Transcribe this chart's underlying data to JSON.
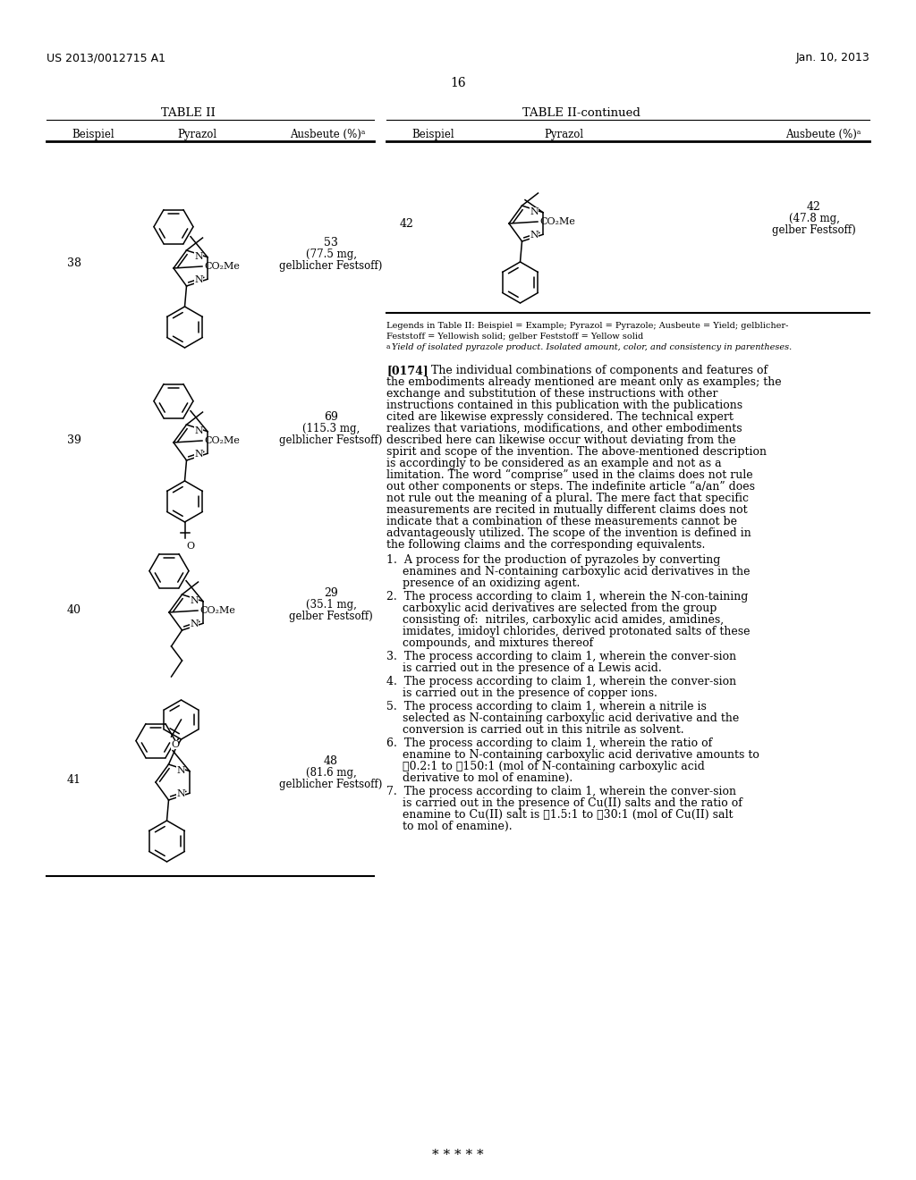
{
  "page_number": "16",
  "patent_number": "US 2013/0012715 A1",
  "patent_date": "Jan. 10, 2013",
  "background_color": "#ffffff",
  "table_left_title": "TABLE II",
  "table_right_title": "TABLE II-continued",
  "legend_line1": "Legends in Table II: Beispiel = Example; Pyrazol = Pyrazole; Ausbeute = Yield; gelblicher-",
  "legend_line2": "Feststoff = Yellowish solid; gelber Feststoff = Yellow solid",
  "legend_line3a": "a",
  "legend_line3": "Yield of isolated pyrazole product. Isolated amount, color, and consistency in parentheses.",
  "para0174_bold": "[0174]",
  "para0174_text": "   The individual combinations of components and features of the embodiments already mentioned are meant only as examples; the exchange and substitution of these instructions with other instructions contained in this publication with the publications cited are likewise expressly considered. The technical expert realizes that variations, modifications, and other embodiments described here can likewise occur without deviating from the spirit and scope of the invention. The above-mentioned description is accordingly to be considered as an example and not as a limitation. The word “comprise” used in the claims does not rule out other components or steps. The indefinite article “a/an” does not rule out the meaning of a plural. The mere fact that specific measurements are recited in mutually different claims does not indicate that a combination of these measurements cannot be advantageously utilized. The scope of the invention is defined in the following claims and the corresponding equivalents.",
  "claim1": "   1.  A process for the production of pyrazoles by converting enamines and N-containing carboxylic acid derivatives in the presence of an oxidizing agent.",
  "claim2": "   2.  The process according to claim 1, wherein the N-con-taining carboxylic acid derivatives are selected from the group consisting of:  nitriles, carboxylic acid amides, amidines, imidates, imidoyl chlorides, derived protonated salts of these compounds, and mixtures thereof",
  "claim3": "   3.  The process according to claim 1, wherein the conver-sion is carried out in the presence of a Lewis acid.",
  "claim4": "   4.  The process according to claim 1, wherein the conver-sion is carried out in the presence of copper ions.",
  "claim5": "   5.  The process according to claim 1, wherein a nitrile is selected as N-containing carboxylic acid derivative and the conversion is carried out in this nitrile as solvent.",
  "claim6": "   6.  The process according to claim 1, wherein the ratio of enamine to N-containing carboxylic acid derivative amounts to ≧0.2:1 to ≧150:1 (mol of N-containing carboxylic acid derivative to mol of enamine).",
  "claim7": "   7.  The process according to claim 1, wherein the conver-sion is carried out in the presence of Cu(II) salts and the ratio of enamine to Cu(II) salt is ≧1.5:1 to ≧30:1 (mol of Cu(II) salt to mol of enamine).",
  "asterisks": "* * * * *"
}
